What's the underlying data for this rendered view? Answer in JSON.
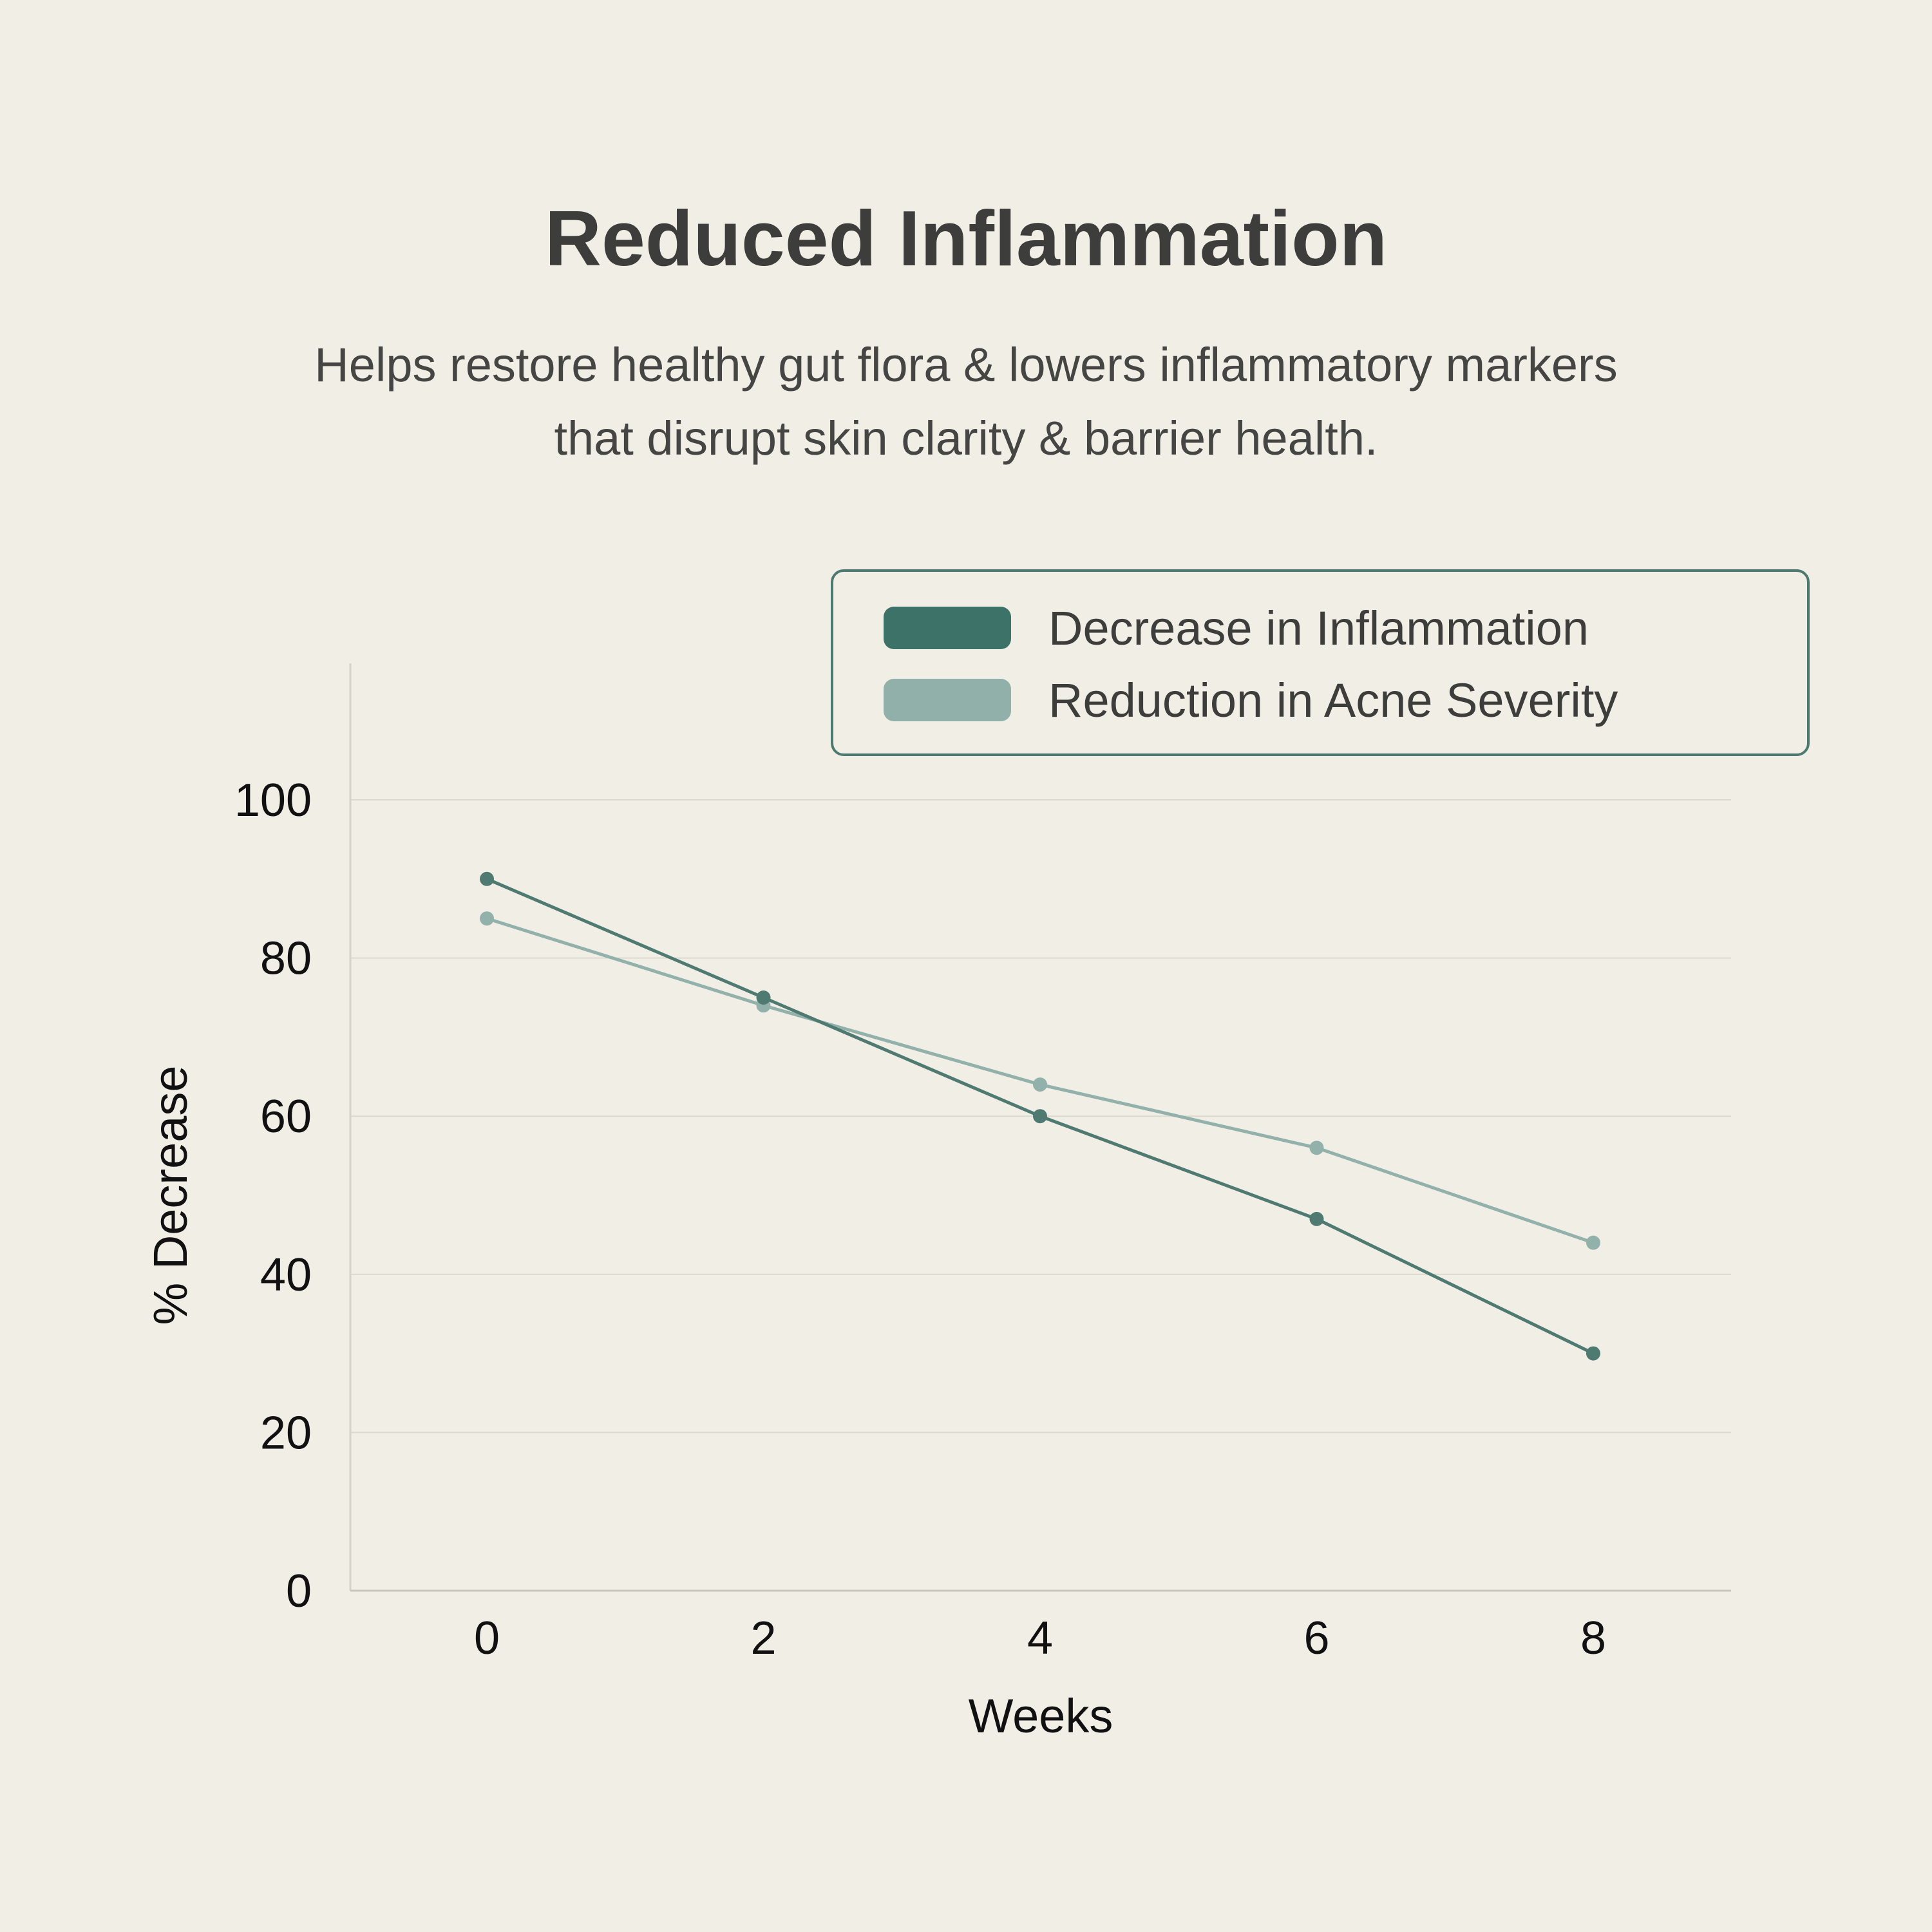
{
  "header": {
    "title": "Reduced Inflammation",
    "subtitle_line1": "Helps restore healthy gut flora & lowers inflammatory markers",
    "subtitle_line2": "that disrupt skin clarity & barrier health."
  },
  "colors": {
    "background": "#f1eee6",
    "series_dark": "#4f7a71",
    "series_light": "#93b1ab",
    "legend_dark": "#3d7268",
    "legend_light": "#92b0aa",
    "grid": "#dcd9d1"
  },
  "chart_data": {
    "type": "line",
    "title": "Reduced Inflammation",
    "xlabel": "Weeks",
    "ylabel": "% Decrease",
    "x": [
      0,
      2,
      4,
      6,
      8
    ],
    "xticks": [
      "0",
      "2",
      "4",
      "6",
      "8"
    ],
    "yticks": [
      "0",
      "20",
      "40",
      "60",
      "80",
      "100"
    ],
    "ytick_values": [
      0,
      20,
      40,
      60,
      80,
      100
    ],
    "xlim": [
      -1,
      9
    ],
    "ylim": [
      0,
      115
    ],
    "grid": true,
    "legend_position": "top-right",
    "series": [
      {
        "name": "Decrease in Inflammation",
        "values": [
          90,
          75,
          60,
          47,
          30
        ],
        "color": "#4f7a71"
      },
      {
        "name": "Reduction in Acne Severity",
        "values": [
          85,
          74,
          64,
          56,
          44
        ],
        "color": "#93b1ab"
      }
    ]
  }
}
